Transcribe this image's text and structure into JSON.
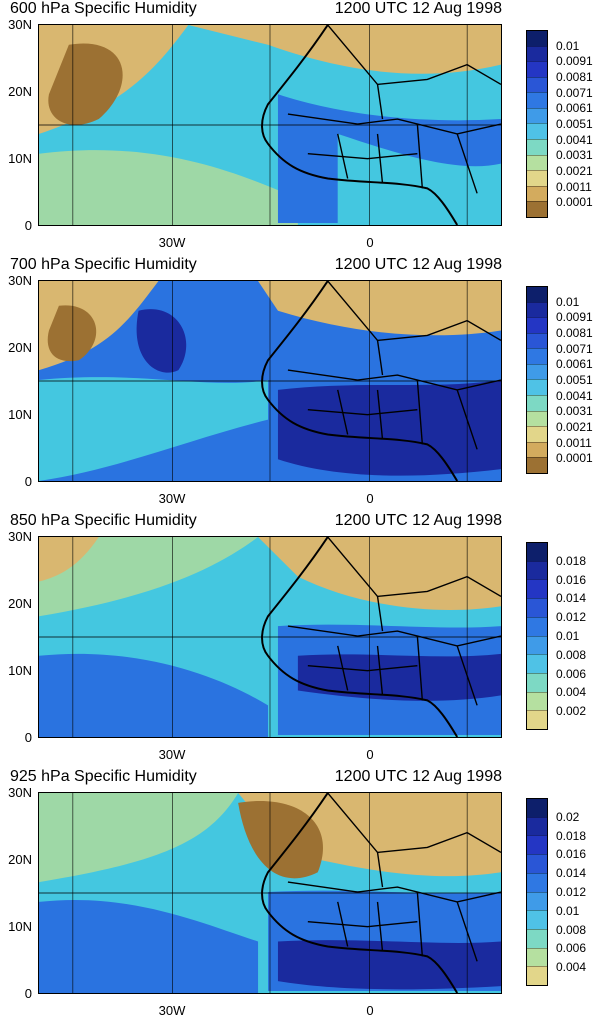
{
  "colors": {
    "dry": "#9c7133",
    "tan": "#d9b770",
    "green": "#9ed8a6",
    "cyan": "#44c7e0",
    "blue": "#2a73e0",
    "dark": "#1a2a9e",
    "coast": "#000000"
  },
  "axes": {
    "y_ticks": [
      "30N",
      "20N",
      "10N",
      "0"
    ],
    "x_ticks": [
      "30W",
      "0"
    ]
  },
  "panels": [
    {
      "title": "600 hPa Specific Humidity",
      "date": "1200 UTC 12 Aug 1998",
      "legend": [
        "0.01",
        "0.0091",
        "0.0081",
        "0.0071",
        "0.0061",
        "0.0051",
        "0.0041",
        "0.0031",
        "0.0021",
        "0.0011",
        "0.0001"
      ],
      "legend_colors": [
        "#0d1f6b",
        "#1a2a9e",
        "#2436c4",
        "#2a56d6",
        "#2f78e3",
        "#3f9be8",
        "#4fc2e6",
        "#7dd9c4",
        "#b5e0a0",
        "#e2d68a",
        "#d3ab5e",
        "#9c7133"
      ]
    },
    {
      "title": "700 hPa Specific Humidity",
      "date": "1200 UTC 12 Aug 1998",
      "legend": [
        "0.01",
        "0.0091",
        "0.0081",
        "0.0071",
        "0.0061",
        "0.0051",
        "0.0041",
        "0.0031",
        "0.0021",
        "0.0011",
        "0.0001"
      ],
      "legend_colors": [
        "#0d1f6b",
        "#1a2a9e",
        "#2436c4",
        "#2a56d6",
        "#2f78e3",
        "#3f9be8",
        "#4fc2e6",
        "#7dd9c4",
        "#b5e0a0",
        "#e2d68a",
        "#d3ab5e",
        "#9c7133"
      ]
    },
    {
      "title": "850 hPa Specific Humidity",
      "date": "1200 UTC 12 Aug 1998",
      "legend": [
        "0.018",
        "0.016",
        "0.014",
        "0.012",
        "0.01",
        "0.008",
        "0.006",
        "0.004",
        "0.002"
      ],
      "legend_colors": [
        "#0d1f6b",
        "#1a2a9e",
        "#2436c4",
        "#2a56d6",
        "#2f78e3",
        "#3f9be8",
        "#4fc2e6",
        "#7dd9c4",
        "#b5e0a0",
        "#e2d68a",
        "#d3ab5e",
        "#9c7133"
      ]
    },
    {
      "title": "925 hPa Specific Humidity",
      "date": "1200 UTC 12 Aug 1998",
      "legend": [
        "0.02",
        "0.018",
        "0.016",
        "0.014",
        "0.012",
        "0.01",
        "0.008",
        "0.006",
        "0.004"
      ],
      "legend_colors": [
        "#0d1f6b",
        "#1a2a9e",
        "#2436c4",
        "#2a56d6",
        "#2f78e3",
        "#3f9be8",
        "#4fc2e6",
        "#7dd9c4",
        "#b5e0a0",
        "#e2d68a",
        "#d3ab5e",
        "#9c7133"
      ]
    }
  ]
}
